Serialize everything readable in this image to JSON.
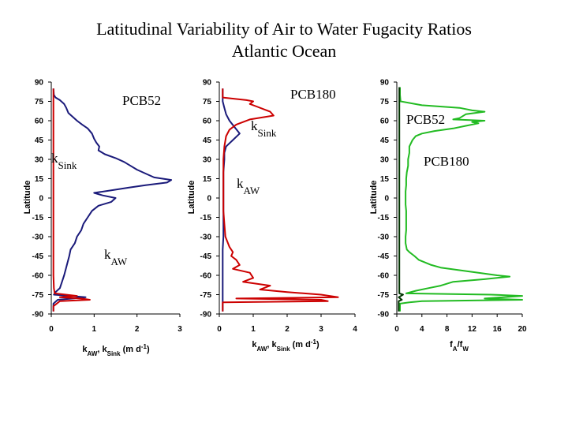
{
  "title_line1": "Latitudinal Variability of Air to Water Fugacity Ratios",
  "title_line2": "Atlantic Ocean",
  "chart_data": [
    {
      "type": "line",
      "panel": "left",
      "ylabel": "Latitude",
      "xlabel": "k_AW, k_Sink (m d^-1)",
      "xlabel_parts": [
        "k",
        "AW",
        ", k",
        "Sink",
        " (m d",
        "-1",
        ")"
      ],
      "ylim": [
        -90,
        90
      ],
      "xlim": [
        0,
        3
      ],
      "yticks": [
        "90",
        "75",
        "60",
        "45",
        "30",
        "15",
        "0",
        "-15",
        "-30",
        "-45",
        "-60",
        "-75",
        "-90"
      ],
      "xticks": [
        "0",
        "1",
        "2",
        "3"
      ],
      "annotations": [
        {
          "text": "PCB52"
        },
        {
          "text": "k",
          "sub": "Sink"
        },
        {
          "text": "k",
          "sub": "AW"
        }
      ],
      "series": [
        {
          "color": "#1a1a7a",
          "points": [
            [
              0.05,
              85
            ],
            [
              0.06,
              80
            ],
            [
              0.1,
              78
            ],
            [
              0.2,
              76
            ],
            [
              0.3,
              73
            ],
            [
              0.35,
              70
            ],
            [
              0.4,
              66
            ],
            [
              0.5,
              63
            ],
            [
              0.6,
              60
            ],
            [
              0.72,
              57
            ],
            [
              0.85,
              54
            ],
            [
              0.95,
              50
            ],
            [
              1.0,
              46
            ],
            [
              1.05,
              43
            ],
            [
              1.12,
              40
            ],
            [
              1.1,
              37
            ],
            [
              1.25,
              34
            ],
            [
              1.5,
              31
            ],
            [
              1.7,
              28
            ],
            [
              1.85,
              25
            ],
            [
              2.0,
              22
            ],
            [
              2.2,
              19
            ],
            [
              2.4,
              16
            ],
            [
              2.8,
              14
            ],
            [
              2.7,
              12
            ],
            [
              2.2,
              10
            ],
            [
              1.8,
              8
            ],
            [
              1.4,
              6
            ],
            [
              1.0,
              4
            ],
            [
              1.2,
              2
            ],
            [
              1.5,
              0
            ],
            [
              1.4,
              -3
            ],
            [
              1.1,
              -6
            ],
            [
              0.95,
              -10
            ],
            [
              0.85,
              -15
            ],
            [
              0.75,
              -20
            ],
            [
              0.7,
              -25
            ],
            [
              0.6,
              -30
            ],
            [
              0.55,
              -35
            ],
            [
              0.45,
              -40
            ],
            [
              0.42,
              -45
            ],
            [
              0.38,
              -50
            ],
            [
              0.34,
              -55
            ],
            [
              0.3,
              -60
            ],
            [
              0.25,
              -65
            ],
            [
              0.2,
              -70
            ],
            [
              0.1,
              -73
            ],
            [
              0.06,
              -75
            ],
            [
              0.8,
              -77
            ],
            [
              0.5,
              -78
            ],
            [
              0.15,
              -79
            ],
            [
              0.05,
              -82
            ],
            [
              0.05,
              -88
            ]
          ]
        },
        {
          "color": "#cc0000",
          "points": [
            [
              0.05,
              85
            ],
            [
              0.05,
              80
            ],
            [
              0.05,
              75
            ],
            [
              0.05,
              70
            ],
            [
              0.05,
              60
            ],
            [
              0.05,
              50
            ],
            [
              0.05,
              40
            ],
            [
              0.05,
              30
            ],
            [
              0.05,
              20
            ],
            [
              0.05,
              10
            ],
            [
              0.05,
              0
            ],
            [
              0.05,
              -10
            ],
            [
              0.05,
              -20
            ],
            [
              0.05,
              -30
            ],
            [
              0.05,
              -40
            ],
            [
              0.05,
              -50
            ],
            [
              0.05,
              -60
            ],
            [
              0.06,
              -70
            ],
            [
              0.08,
              -74
            ],
            [
              0.6,
              -76
            ],
            [
              0.2,
              -77
            ],
            [
              0.7,
              -78
            ],
            [
              0.9,
              -79
            ],
            [
              0.2,
              -80
            ],
            [
              0.05,
              -84
            ],
            [
              0.05,
              -88
            ]
          ]
        }
      ]
    },
    {
      "type": "line",
      "panel": "middle",
      "ylabel": "Latitude",
      "xlabel": "k_AW, k_Sink (m d^-1)",
      "xlabel_parts": [
        "k",
        "AW",
        ", k",
        "Sink",
        " (m d",
        "-1",
        ")"
      ],
      "ylim": [
        -90,
        90
      ],
      "xlim": [
        0,
        4
      ],
      "yticks": [
        "90",
        "75",
        "60",
        "45",
        "30",
        "15",
        "0",
        "-15",
        "-30",
        "-45",
        "-60",
        "-75",
        "-90"
      ],
      "xticks": [
        "0",
        "1",
        "2",
        "3",
        "4"
      ],
      "annotations": [
        {
          "text": "PCB180"
        },
        {
          "text": "k",
          "sub": "Sink"
        },
        {
          "text": "k",
          "sub": "AW"
        }
      ],
      "series": [
        {
          "color": "#1a1a7a",
          "points": [
            [
              0.1,
              85
            ],
            [
              0.1,
              80
            ],
            [
              0.1,
              75
            ],
            [
              0.15,
              70
            ],
            [
              0.2,
              65
            ],
            [
              0.3,
              60
            ],
            [
              0.45,
              55
            ],
            [
              0.6,
              50
            ],
            [
              0.4,
              45
            ],
            [
              0.2,
              40
            ],
            [
              0.15,
              35
            ],
            [
              0.15,
              30
            ],
            [
              0.12,
              20
            ],
            [
              0.12,
              10
            ],
            [
              0.12,
              0
            ],
            [
              0.12,
              -10
            ],
            [
              0.12,
              -20
            ],
            [
              0.12,
              -30
            ],
            [
              0.1,
              -40
            ],
            [
              0.1,
              -50
            ],
            [
              0.1,
              -60
            ],
            [
              0.1,
              -70
            ],
            [
              0.1,
              -75
            ],
            [
              0.1,
              -80
            ],
            [
              0.1,
              -88
            ]
          ]
        },
        {
          "color": "#cc0000",
          "points": [
            [
              0.1,
              85
            ],
            [
              0.1,
              78
            ],
            [
              0.8,
              76
            ],
            [
              1.0,
              75
            ],
            [
              0.9,
              73
            ],
            [
              1.1,
              71
            ],
            [
              1.3,
              69
            ],
            [
              1.5,
              67
            ],
            [
              1.6,
              64
            ],
            [
              0.9,
              61
            ],
            [
              0.5,
              57
            ],
            [
              0.3,
              53
            ],
            [
              0.2,
              48
            ],
            [
              0.15,
              40
            ],
            [
              0.12,
              30
            ],
            [
              0.12,
              20
            ],
            [
              0.12,
              10
            ],
            [
              0.12,
              0
            ],
            [
              0.12,
              -10
            ],
            [
              0.15,
              -20
            ],
            [
              0.18,
              -30
            ],
            [
              0.3,
              -38
            ],
            [
              0.4,
              -42
            ],
            [
              0.35,
              -45
            ],
            [
              0.5,
              -48
            ],
            [
              0.6,
              -52
            ],
            [
              0.4,
              -55
            ],
            [
              0.9,
              -58
            ],
            [
              1.0,
              -62
            ],
            [
              0.7,
              -65
            ],
            [
              1.5,
              -68
            ],
            [
              1.2,
              -71
            ],
            [
              2.0,
              -73
            ],
            [
              3.0,
              -75
            ],
            [
              3.5,
              -77
            ],
            [
              0.5,
              -78
            ],
            [
              3.0,
              -79
            ],
            [
              3.2,
              -80
            ],
            [
              0.1,
              -81
            ],
            [
              0.1,
              -88
            ]
          ]
        }
      ]
    },
    {
      "type": "line",
      "panel": "right",
      "ylabel": "Latitude",
      "xlabel": "f_A/f_W",
      "xlabel_parts": [
        "f",
        "A",
        "/f",
        "W"
      ],
      "ylim": [
        -90,
        90
      ],
      "xlim": [
        0,
        20
      ],
      "yticks": [
        "90",
        "75",
        "60",
        "45",
        "30",
        "15",
        "0",
        "-15",
        "-30",
        "-45",
        "-60",
        "-75",
        "-90"
      ],
      "xticks": [
        "0",
        "4",
        "8",
        "12",
        "16",
        "20"
      ],
      "annotations": [
        {
          "text": "PCB52"
        },
        {
          "text": "PCB180"
        }
      ],
      "series": [
        {
          "color": "#22bb22",
          "points": [
            [
              0.5,
              86
            ],
            [
              0.5,
              80
            ],
            [
              0.6,
              75
            ],
            [
              4,
              72
            ],
            [
              10,
              70
            ],
            [
              12,
              68
            ],
            [
              14,
              67
            ],
            [
              11,
              65
            ],
            [
              10,
              62
            ],
            [
              9,
              61
            ],
            [
              14,
              60
            ],
            [
              12,
              59
            ],
            [
              13,
              58
            ],
            [
              11,
              56
            ],
            [
              9,
              54
            ],
            [
              6,
              52
            ],
            [
              4,
              50
            ],
            [
              3,
              48
            ],
            [
              2.5,
              45
            ],
            [
              2,
              40
            ],
            [
              2,
              35
            ],
            [
              1.8,
              30
            ],
            [
              1.8,
              25
            ],
            [
              1.6,
              20
            ],
            [
              1.5,
              15
            ],
            [
              1.5,
              10
            ],
            [
              1.4,
              5
            ],
            [
              1.4,
              0
            ],
            [
              1.4,
              -5
            ],
            [
              1.5,
              -10
            ],
            [
              1.5,
              -15
            ],
            [
              1.5,
              -20
            ],
            [
              1.5,
              -25
            ],
            [
              1.4,
              -30
            ],
            [
              1.4,
              -35
            ],
            [
              1.6,
              -40
            ],
            [
              2.0,
              -42
            ],
            [
              2.8,
              -45
            ],
            [
              3.5,
              -48
            ],
            [
              4.5,
              -50
            ],
            [
              5.5,
              -52
            ],
            [
              7,
              -54
            ],
            [
              10,
              -56
            ],
            [
              13,
              -58
            ],
            [
              16,
              -60
            ],
            [
              18,
              -61
            ],
            [
              14,
              -63
            ],
            [
              9,
              -65
            ],
            [
              7,
              -68
            ],
            [
              5,
              -70
            ],
            [
              3,
              -72
            ],
            [
              1.5,
              -74
            ],
            [
              15,
              -75
            ],
            [
              20,
              -76
            ],
            [
              14,
              -78
            ],
            [
              20,
              -79
            ],
            [
              4,
              -80
            ],
            [
              2,
              -81
            ],
            [
              0.5,
              -82
            ],
            [
              0.5,
              -88
            ]
          ]
        },
        {
          "color": "#003300",
          "points": [
            [
              0.4,
              86
            ],
            [
              0.4,
              80
            ],
            [
              0.4,
              70
            ],
            [
              0.4,
              60
            ],
            [
              0.4,
              50
            ],
            [
              0.4,
              40
            ],
            [
              0.4,
              30
            ],
            [
              0.4,
              20
            ],
            [
              0.4,
              10
            ],
            [
              0.4,
              0
            ],
            [
              0.4,
              -10
            ],
            [
              0.4,
              -20
            ],
            [
              0.4,
              -30
            ],
            [
              0.4,
              -40
            ],
            [
              0.4,
              -50
            ],
            [
              0.4,
              -60
            ],
            [
              0.4,
              -70
            ],
            [
              0.4,
              -74
            ],
            [
              1.0,
              -75
            ],
            [
              0.3,
              -77
            ],
            [
              0.8,
              -79
            ],
            [
              0.3,
              -80
            ],
            [
              0.3,
              -88
            ]
          ]
        }
      ]
    }
  ]
}
